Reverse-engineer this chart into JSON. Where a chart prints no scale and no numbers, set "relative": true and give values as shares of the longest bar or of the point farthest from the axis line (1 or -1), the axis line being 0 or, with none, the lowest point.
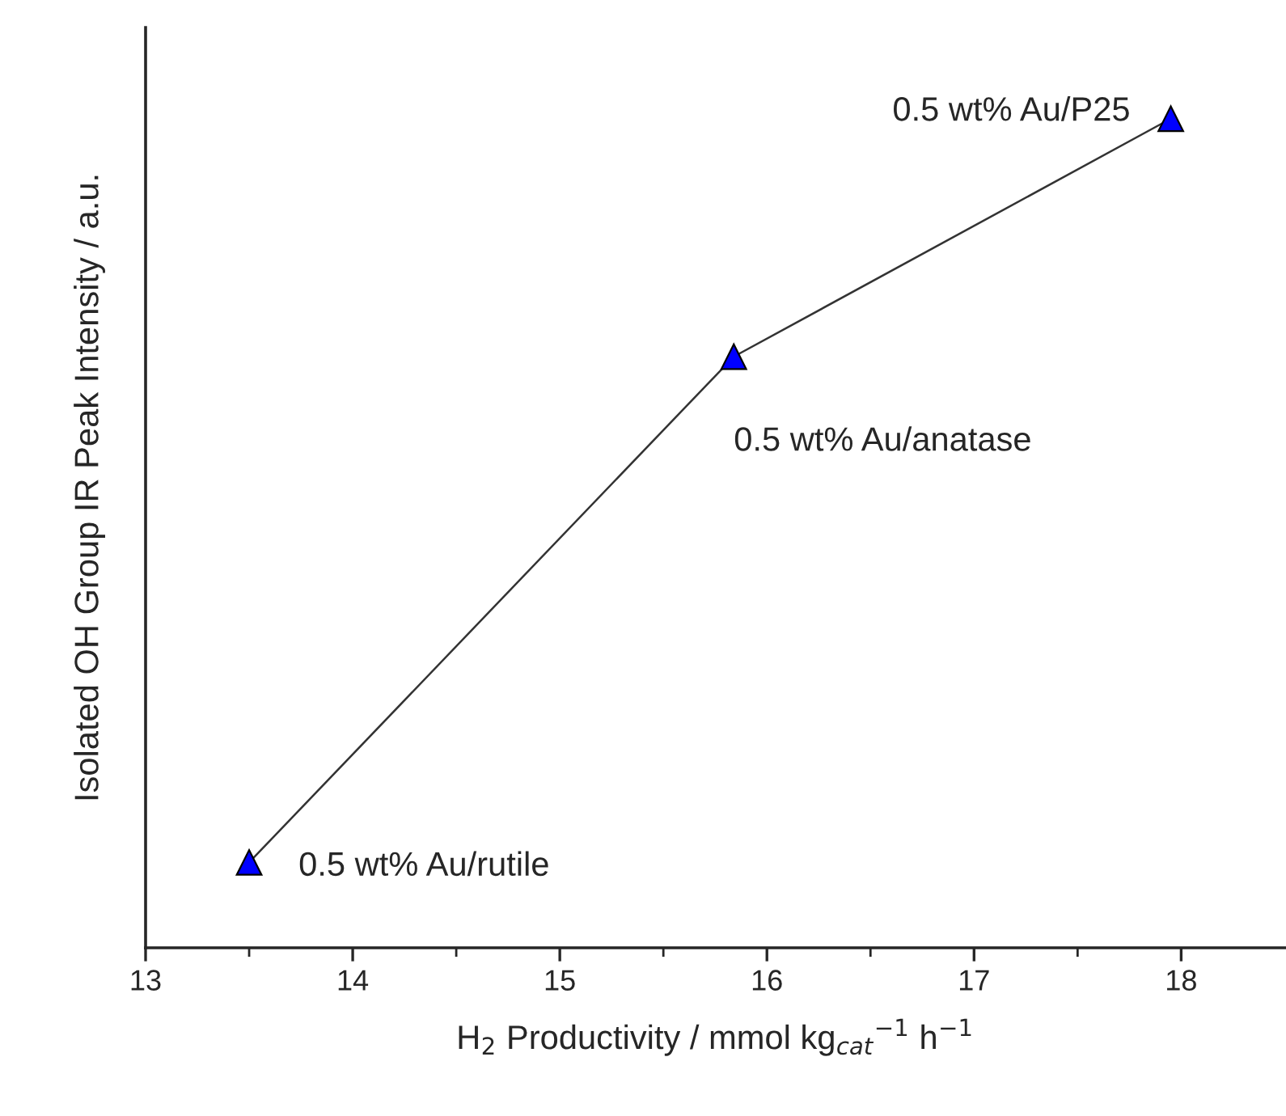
{
  "chart_data": {
    "type": "line",
    "relative": true,
    "xlabel": "H$_{2}$ Productivity / mmol kg$_{cat}$$^{−1}$ h$^{−1}$",
    "ylabel": "Isolated OH Group IR Peak Intensity / a.u.",
    "x": [
      13.5,
      15.84,
      17.95
    ],
    "series": [
      {
        "color": "#0000ff",
        "values": [
          0.103,
          0.713,
          1
        ]
      }
    ],
    "marker": "triangle",
    "line_style": "solid",
    "grid": false,
    "legend": false,
    "xlim": [
      13,
      18.5
    ],
    "xticks": [
      13,
      14,
      15,
      16,
      17,
      18
    ],
    "annotations": [
      {
        "text": "0.5 wt% Au/rutile",
        "x": 13.5,
        "y": 0.103
      },
      {
        "text": "0.5 wt% Au/anatase",
        "x": 15.84,
        "y": 0.713
      },
      {
        "text": "0.5 wt% Au/P25",
        "x": 17.95,
        "y": 1
      }
    ]
  }
}
